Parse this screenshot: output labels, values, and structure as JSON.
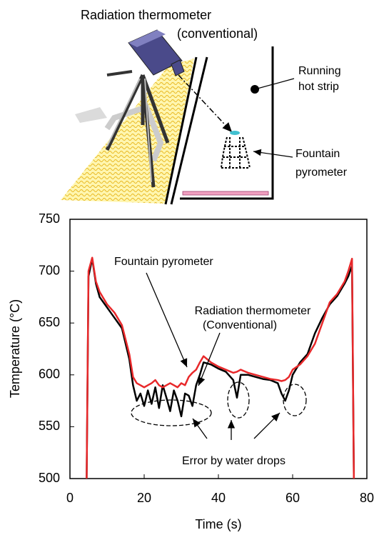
{
  "diagram": {
    "camera_label": "Radiation thermometer",
    "camera_sublabel": "(conventional)",
    "strip_label": [
      "Running",
      "hot strip"
    ],
    "pyrometer_label": [
      "Fountain",
      "pyrometer"
    ]
  },
  "chart_data": {
    "type": "line",
    "x_label": "Time (s)",
    "y_label": "Temperature (°C)",
    "annotations": [
      "Fountain pyrometer",
      "Radiation thermometer",
      "(Conventional)",
      "Error by water drops"
    ],
    "x": [
      4.5,
      5,
      6,
      7,
      8,
      10,
      12,
      14,
      16,
      17,
      18,
      19,
      20,
      21,
      22,
      23,
      24,
      25,
      26,
      27,
      28,
      29,
      30,
      31,
      32,
      33,
      34,
      35,
      36,
      38,
      40,
      42,
      44,
      45,
      46,
      48,
      50,
      52,
      54,
      56,
      57,
      58,
      59,
      60,
      62,
      64,
      66,
      68,
      70,
      72,
      74,
      75,
      76,
      76.5
    ],
    "series": [
      {
        "color": "#000000",
        "values": [
          500,
          695,
          712,
          688,
          675,
          665,
          655,
          645,
          615,
          590,
          575,
          582,
          570,
          585,
          572,
          588,
          568,
          590,
          578,
          565,
          585,
          575,
          560,
          582,
          580,
          570,
          590,
          600,
          612,
          610,
          606,
          603,
          595,
          578,
          600,
          600,
          598,
          596,
          595,
          592,
          582,
          575,
          585,
          600,
          612,
          620,
          640,
          655,
          668,
          676,
          688,
          695,
          705,
          500
        ]
      },
      {
        "color": "#e8282a",
        "values": [
          500,
          700,
          713,
          690,
          680,
          668,
          660,
          648,
          620,
          598,
          592,
          590,
          588,
          590,
          592,
          595,
          590,
          588,
          590,
          592,
          590,
          588,
          592,
          590,
          598,
          602,
          605,
          612,
          618,
          612,
          608,
          605,
          602,
          603,
          605,
          602,
          600,
          598,
          596,
          595,
          594,
          595,
          598,
          605,
          610,
          618,
          630,
          650,
          670,
          678,
          690,
          700,
          712,
          500
        ]
      }
    ],
    "xlim": [
      0,
      80
    ],
    "xticks": [
      0,
      20,
      40,
      60,
      80
    ],
    "ylim": [
      500,
      750
    ],
    "yticks": [
      500,
      550,
      600,
      650,
      700,
      750
    ]
  }
}
